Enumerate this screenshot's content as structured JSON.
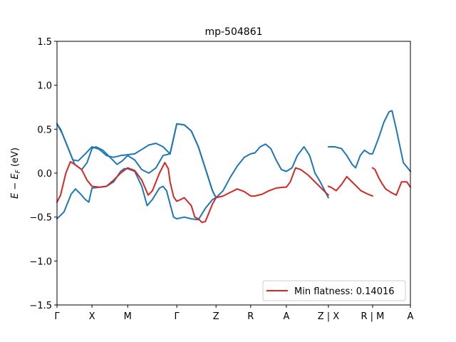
{
  "chart_data": {
    "type": "line",
    "title": "mp-504861",
    "xlabel": "",
    "ylabel": "E − E_F (eV)",
    "ylim": [
      -1.5,
      1.5
    ],
    "xlim": [
      0,
      100
    ],
    "yticks": [
      -1.5,
      -1.0,
      -0.5,
      0.0,
      0.5,
      1.0,
      1.5
    ],
    "ytick_labels": [
      "−1.5",
      "−1.0",
      "−0.5",
      "0.0",
      "0.5",
      "1.0",
      "1.5"
    ],
    "high_symmetry_points": [
      {
        "label": "Γ",
        "x": 0
      },
      {
        "label": "X",
        "x": 9.9
      },
      {
        "label": "M",
        "x": 20
      },
      {
        "label": "Γ",
        "x": 33.9
      },
      {
        "label": "Z",
        "x": 45
      },
      {
        "label": "R",
        "x": 54.8
      },
      {
        "label": "A",
        "x": 64.9
      },
      {
        "label": "Z | X",
        "x": 76.8
      },
      {
        "label": "R | M",
        "x": 89.3
      },
      {
        "label": "A",
        "x": 100
      }
    ],
    "grid": false,
    "legend": {
      "position": "bottom-right",
      "entries": [
        "Min flatness: 0.14016"
      ]
    },
    "series": [
      {
        "name": "",
        "color": "#1f77b4",
        "x": [
          0,
          1,
          3,
          4.5,
          6,
          8,
          9.9,
          12,
          14,
          16,
          18,
          20,
          22,
          24,
          26,
          28,
          30,
          32,
          33.9,
          36,
          38,
          40,
          42,
          44,
          45
        ],
        "y": [
          0.56,
          0.5,
          0.3,
          0.15,
          0.14,
          0.22,
          0.3,
          0.27,
          0.2,
          0.18,
          0.2,
          0.21,
          0.22,
          0.27,
          0.32,
          0.34,
          0.3,
          0.22,
          0.56,
          0.55,
          0.48,
          0.3,
          0.05,
          -0.2,
          -0.28
        ]
      },
      {
        "name": "",
        "color": "#1f77b4",
        "x": [
          0,
          1.5,
          3,
          5,
          7,
          8.5,
          9.9,
          11,
          13,
          15,
          17,
          18.5,
          20,
          22,
          24,
          26,
          28,
          30,
          32,
          33.9,
          36,
          38,
          40,
          42,
          44,
          45
        ],
        "y": [
          0.56,
          0.45,
          0.3,
          0.1,
          0.04,
          0.12,
          0.28,
          0.3,
          0.26,
          0.18,
          0.1,
          0.14,
          0.2,
          0.15,
          0.04,
          0.0,
          0.06,
          0.2,
          0.22,
          0.56,
          0.55,
          0.48,
          0.3,
          0.05,
          -0.2,
          -0.28
        ]
      },
      {
        "name": "",
        "color": "#1f77b4",
        "x": [
          0,
          2,
          4,
          5.2,
          6.5,
          8,
          9,
          9.9,
          12,
          14,
          16,
          17,
          18,
          19,
          20
        ],
        "y": [
          -0.52,
          -0.44,
          -0.24,
          -0.18,
          -0.23,
          -0.3,
          -0.33,
          -0.17,
          -0.16,
          -0.15,
          -0.1,
          -0.04,
          0.02,
          0.05,
          0.05
        ]
      },
      {
        "name": "",
        "color": "#1f77b4",
        "x": [
          20,
          22,
          24,
          25.5,
          27,
          29,
          30,
          31,
          32,
          33,
          33.9,
          36,
          38,
          40,
          42,
          44,
          45
        ],
        "y": [
          0.05,
          0.02,
          -0.15,
          -0.37,
          -0.3,
          -0.17,
          -0.15,
          -0.2,
          -0.35,
          -0.5,
          -0.52,
          -0.5,
          -0.52,
          -0.53,
          -0.4,
          -0.3,
          -0.28
        ]
      },
      {
        "name": "",
        "color": "#1f77b4",
        "x": [
          45,
          47,
          49,
          51,
          53,
          54.8,
          56,
          57.5,
          59,
          60.5,
          62,
          63.5,
          64.9,
          66.5,
          68,
          69.9,
          71.5,
          73,
          74.5,
          76,
          76.8
        ],
        "y": [
          -0.28,
          -0.2,
          -0.05,
          0.08,
          0.18,
          0.22,
          0.23,
          0.3,
          0.33,
          0.28,
          0.15,
          0.04,
          0.02,
          0.06,
          0.2,
          0.3,
          0.2,
          0.0,
          -0.1,
          -0.22,
          -0.28
        ]
      },
      {
        "name": "",
        "color": "#1f77b4",
        "x": [
          76.8,
          78.5,
          80.5,
          82,
          83.5,
          84.5,
          85.8,
          87,
          88.5,
          89.3,
          91,
          92.5,
          94,
          94.8,
          96,
          98,
          100
        ],
        "y": [
          0.3,
          0.3,
          0.28,
          0.2,
          0.1,
          0.06,
          0.2,
          0.26,
          0.22,
          0.22,
          0.4,
          0.58,
          0.7,
          0.71,
          0.5,
          0.12,
          0.02
        ]
      },
      {
        "name": "Min flatness: 0.14016",
        "color": "#d62728",
        "x": [
          0,
          1,
          2.5,
          3.8,
          5,
          7,
          8.5,
          9.9,
          12,
          14,
          16,
          18,
          20,
          22,
          24,
          25.8,
          27,
          29,
          30.5,
          31.5,
          32,
          33,
          33.9,
          35,
          36,
          38,
          39,
          40,
          41,
          42,
          43,
          44,
          45
        ],
        "y": [
          -0.33,
          -0.25,
          0.0,
          0.13,
          0.1,
          0.04,
          -0.08,
          -0.15,
          -0.16,
          -0.15,
          -0.08,
          0.0,
          0.06,
          0.03,
          -0.08,
          -0.25,
          -0.2,
          0.0,
          0.12,
          0.05,
          -0.1,
          -0.27,
          -0.32,
          -0.3,
          -0.28,
          -0.37,
          -0.5,
          -0.52,
          -0.56,
          -0.55,
          -0.45,
          -0.35,
          -0.28
        ]
      },
      {
        "name": "",
        "color": "#d62728",
        "x": [
          45,
          47,
          49,
          51,
          53,
          54.8,
          56,
          58,
          60,
          62,
          64,
          64.9,
          66,
          67.5,
          69,
          71,
          73,
          75,
          76,
          76.8
        ],
        "y": [
          -0.28,
          -0.26,
          -0.22,
          -0.18,
          -0.21,
          -0.26,
          -0.26,
          -0.24,
          -0.2,
          -0.17,
          -0.16,
          -0.16,
          -0.1,
          0.06,
          0.04,
          -0.02,
          -0.1,
          -0.18,
          -0.22,
          -0.25
        ]
      },
      {
        "name": "",
        "color": "#d62728",
        "x": [
          76.8,
          77.5,
          79,
          80.5,
          82,
          84,
          86,
          88,
          89.3
        ],
        "y": [
          -0.15,
          -0.16,
          -0.2,
          -0.13,
          -0.04,
          -0.12,
          -0.2,
          -0.24,
          -0.26
        ]
      },
      {
        "name": "",
        "color": "#d62728",
        "x": [
          89.3,
          90,
          91,
          92,
          93,
          94.5,
          96,
          97.5,
          99,
          100
        ],
        "y": [
          0.06,
          0.04,
          -0.05,
          -0.12,
          -0.18,
          -0.22,
          -0.25,
          -0.1,
          -0.1,
          -0.16
        ]
      }
    ]
  }
}
